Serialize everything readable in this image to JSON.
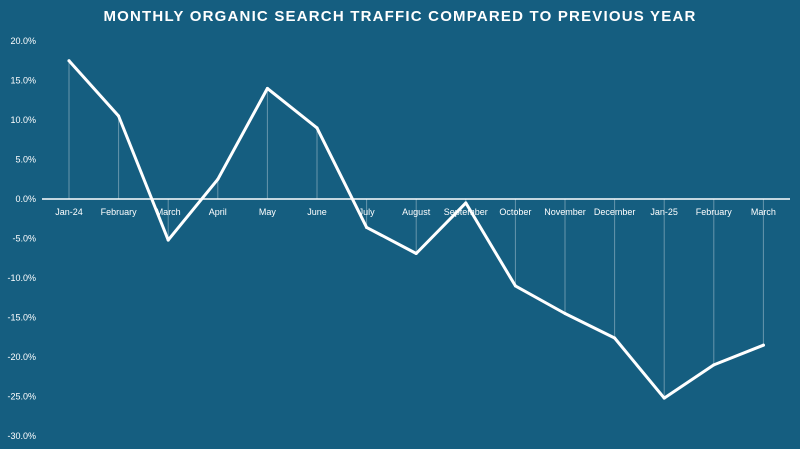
{
  "chart_data": {
    "type": "line",
    "title": "MONTHLY ORGANIC SEARCH TRAFFIC COMPARED TO PREVIOUS YEAR",
    "xlabel": "",
    "ylabel": "",
    "categories": [
      "Jan-24",
      "February",
      "March",
      "April",
      "May",
      "June",
      "July",
      "August",
      "September",
      "October",
      "November",
      "December",
      "Jan-25",
      "February",
      "March"
    ],
    "series": [
      {
        "values": [
          17.5,
          10.5,
          -5.2,
          2.5,
          14.0,
          9.0,
          -3.6,
          -6.9,
          -0.5,
          -11.0,
          -14.5,
          -17.6,
          -25.2,
          -21.0,
          -18.5
        ]
      }
    ],
    "ylim": [
      -30,
      20
    ],
    "yticks": [
      20,
      15,
      10,
      5,
      0,
      -5,
      -10,
      -15,
      -20,
      -25,
      -30
    ],
    "ytick_labels": [
      "20.0%",
      "15.0%",
      "10.0%",
      "5.0%",
      "0.0%",
      "-5.0%",
      "-10.0%",
      "-15.0%",
      "-20.0%",
      "-25.0%",
      "-30.0%"
    ],
    "grid": false,
    "legend": "none",
    "colors": {
      "background": "#155e80",
      "line": "#ffffff",
      "text": "#ffffff"
    }
  }
}
